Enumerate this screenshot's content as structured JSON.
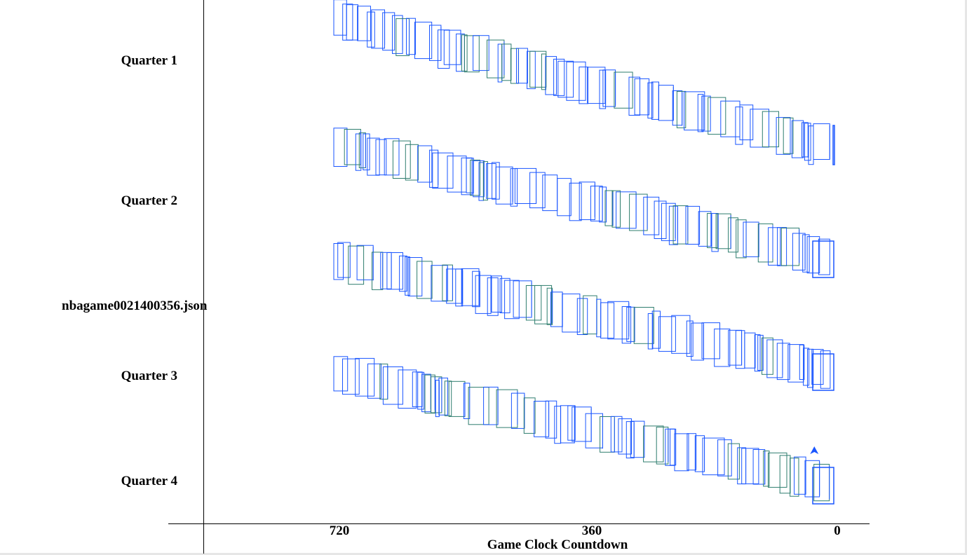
{
  "chart_data": {
    "type": "line",
    "title": "nbagame0021400356.json",
    "xlabel": "Game Clock Countdown",
    "ylabel": "",
    "x_ticks": [
      "720",
      "360",
      "0"
    ],
    "x_tick_values": [
      720,
      360,
      0
    ],
    "xlim": [
      720,
      0
    ],
    "category_labels": [
      "Quarter 1",
      "Quarter 2",
      "Quarter 3",
      "Quarter 4"
    ],
    "series": [
      {
        "name": "Quarter 1",
        "clock_start": 720,
        "clock_end": 0,
        "band_offset_start": 0,
        "band_offset_end": 1.0
      },
      {
        "name": "Quarter 2",
        "clock_start": 720,
        "clock_end": 0,
        "band_offset_start": 0,
        "band_offset_end": 0.9
      },
      {
        "name": "Quarter 3",
        "clock_start": 720,
        "clock_end": 0,
        "band_offset_start": 0,
        "band_offset_end": 0.9
      },
      {
        "name": "Quarter 4",
        "clock_start": 720,
        "clock_end": 0,
        "band_offset_start": 0,
        "band_offset_end": 0.9
      }
    ],
    "line_color": "#1a56ff",
    "line_color_alt": "#2e7d6e",
    "marker": "arrow-up",
    "grid": false
  }
}
